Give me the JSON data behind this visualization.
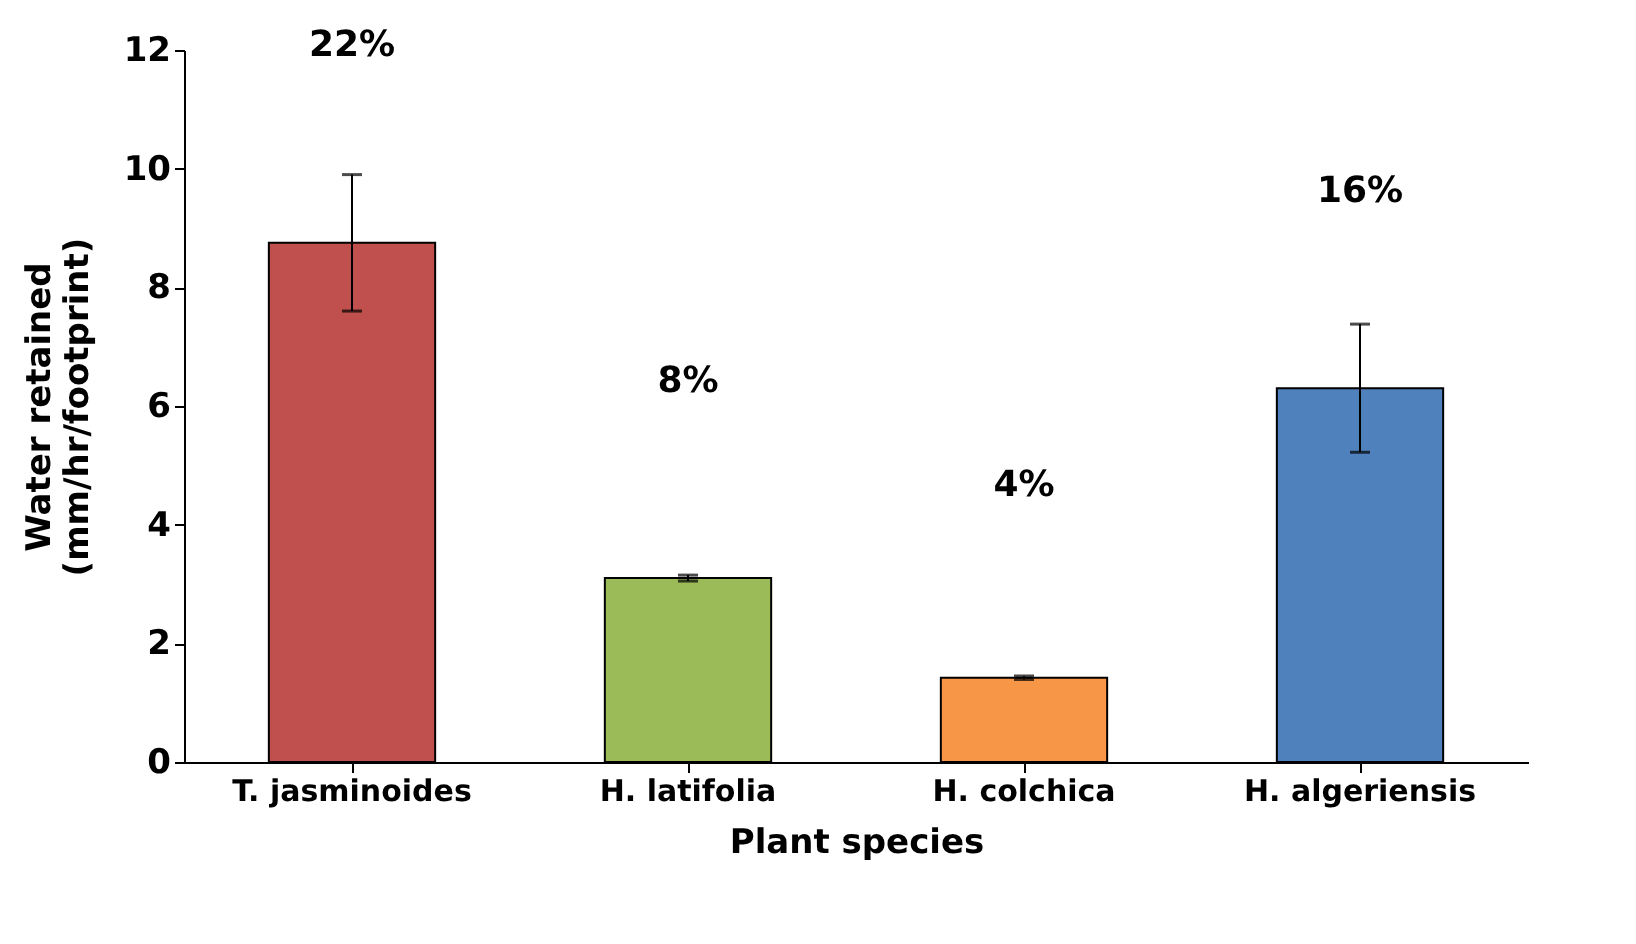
{
  "chart_data": {
    "type": "bar",
    "xlabel": "Plant species",
    "ylabel": "Water retained\n(mm/hr/footprint)",
    "categories": [
      "T. jasminoides",
      "H. latifolia",
      "H. colchica",
      "H. algeriensis"
    ],
    "values": [
      8.75,
      3.1,
      1.42,
      6.3
    ],
    "colors": [
      "#c0504d",
      "#9bbb59",
      "#f79646",
      "#4f81bd"
    ],
    "errors": [
      1.15,
      0.05,
      0.03,
      1.08
    ],
    "ylim": [
      0,
      12
    ],
    "yticks": [
      0,
      2,
      4,
      6,
      8,
      10,
      12
    ],
    "annotations": [
      "22%",
      "8%",
      "4%",
      "16%"
    ]
  }
}
